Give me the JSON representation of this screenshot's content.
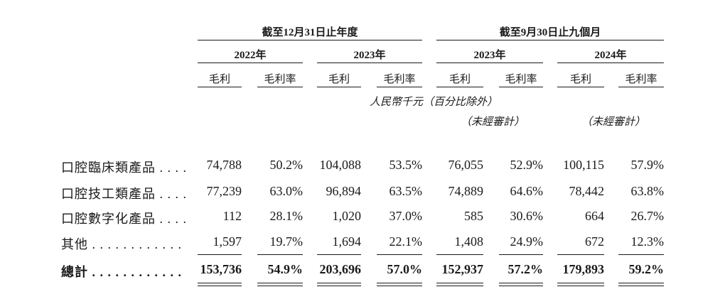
{
  "header": {
    "group1": "截至12月31日止年度",
    "group2": "截至9月30日止九個月",
    "years": [
      "2022年",
      "2023年",
      "2023年",
      "2024年"
    ],
    "col_gross_profit": "毛利",
    "col_margin": "毛利率",
    "unit_note": "人民幣千元（百分比除外）",
    "unaudited": "（未經審計）"
  },
  "rows": [
    {
      "label": "口腔臨床類產品 . . . .",
      "values": [
        "74,788",
        "50.2%",
        "104,088",
        "53.5%",
        "76,055",
        "52.9%",
        "100,115",
        "57.9%"
      ]
    },
    {
      "label": "口腔技工類產品 . . . .",
      "values": [
        "77,239",
        "63.0%",
        "96,894",
        "63.5%",
        "74,889",
        "64.6%",
        "78,442",
        "63.8%"
      ]
    },
    {
      "label": "口腔數字化產品 . . . .",
      "values": [
        "112",
        "28.1%",
        "1,020",
        "37.0%",
        "585",
        "30.6%",
        "664",
        "26.7%"
      ]
    },
    {
      "label": "其他 . . . . . . . . . . . .",
      "values": [
        "1,597",
        "19.7%",
        "1,694",
        "22.1%",
        "1,408",
        "24.9%",
        "672",
        "12.3%"
      ]
    }
  ],
  "total": {
    "label": "總計 . . . . . . . . . . . .",
    "values": [
      "153,736",
      "54.9%",
      "203,696",
      "57.0%",
      "152,937",
      "57.2%",
      "179,893",
      "59.2%"
    ]
  }
}
